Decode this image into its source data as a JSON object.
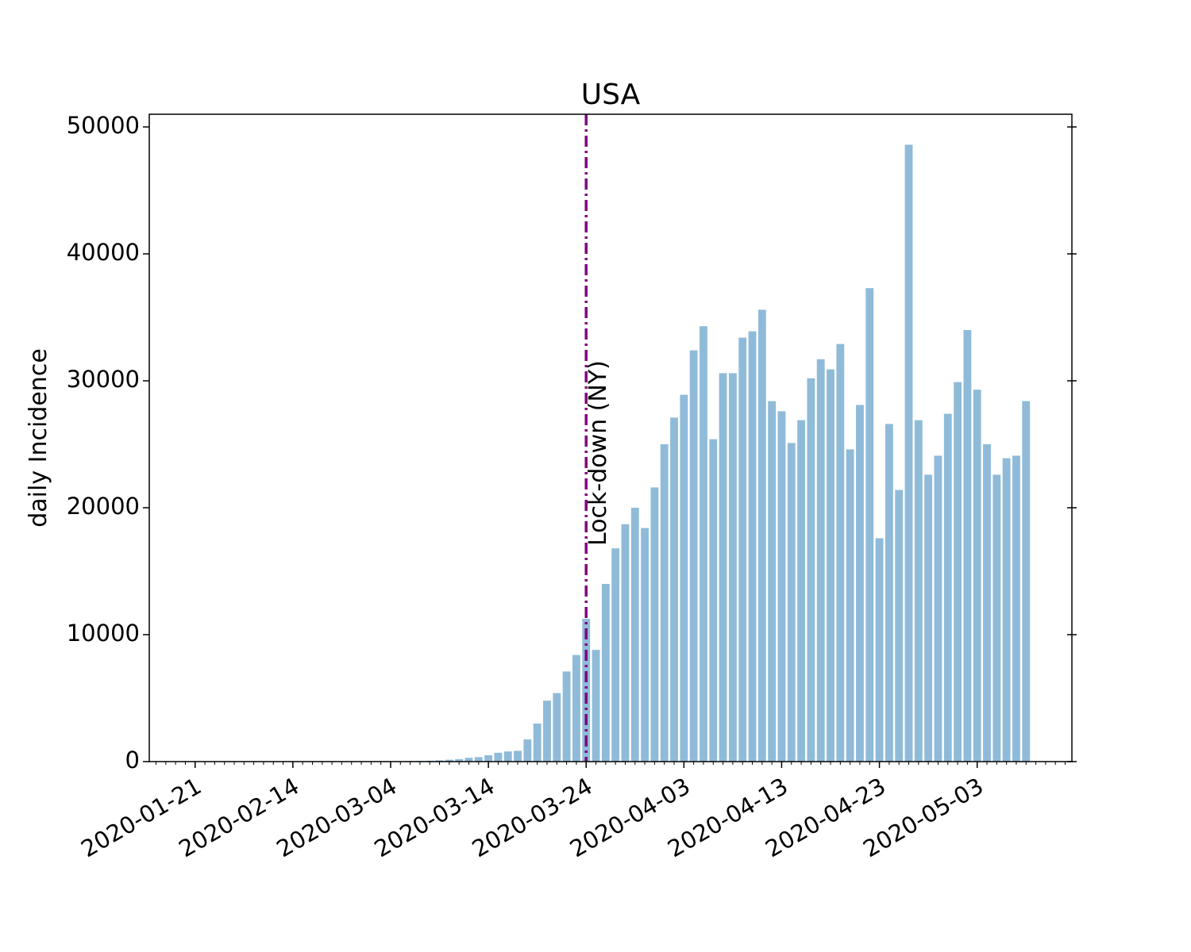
{
  "chart_data": {
    "type": "bar",
    "title": "USA",
    "y_label": "daily Incidence",
    "color": "#8fbbd9",
    "categories": [
      "2020-01-21",
      null,
      null,
      null,
      null,
      null,
      null,
      null,
      null,
      null,
      "2020-02-14",
      null,
      null,
      null,
      null,
      null,
      null,
      null,
      null,
      null,
      "2020-03-04",
      null,
      null,
      null,
      null,
      null,
      null,
      null,
      null,
      null,
      "2020-03-14",
      null,
      null,
      null,
      null,
      null,
      null,
      null,
      null,
      null,
      "2020-03-24",
      null,
      null,
      null,
      null,
      null,
      null,
      null,
      null,
      null,
      "2020-04-03",
      null,
      null,
      null,
      null,
      null,
      null,
      null,
      null,
      null,
      "2020-04-13",
      null,
      null,
      null,
      null,
      null,
      null,
      null,
      null,
      null,
      "2020-04-23",
      null,
      null,
      null,
      null,
      null,
      null,
      null,
      null,
      null,
      "2020-05-03",
      null,
      null,
      null,
      null,
      null
    ],
    "values": [
      1,
      0,
      1,
      0,
      1,
      0,
      0,
      1,
      0,
      1,
      1,
      0,
      1,
      2,
      3,
      5,
      8,
      10,
      15,
      20,
      25,
      30,
      40,
      50,
      70,
      100,
      150,
      200,
      300,
      350,
      500,
      700,
      800,
      850,
      1750,
      3000,
      4800,
      5400,
      7100,
      8400,
      11250,
      8800,
      14000,
      16800,
      18700,
      20000,
      18400,
      21600,
      25000,
      27100,
      28900,
      32400,
      34300,
      25400,
      30600,
      30600,
      33400,
      33900,
      35600,
      28400,
      27600,
      25100,
      26900,
      30200,
      31700,
      30900,
      32900,
      24600,
      28100,
      37300,
      17600,
      26600,
      21400,
      48600,
      26900,
      22600,
      24100,
      27400,
      29900,
      34000,
      29300,
      25000,
      22600,
      23900,
      24100,
      28400
    ],
    "xlim": [
      -4.69,
      89.69
    ],
    "xticks": [
      0,
      10,
      20,
      30,
      40,
      50,
      60,
      70,
      80
    ],
    "ylim": [
      0,
      51000
    ],
    "yticks": [
      0,
      10000,
      20000,
      30000,
      40000,
      50000
    ],
    "vline": {
      "x": 40,
      "label": "Lock-down (NY)",
      "color": "#800080"
    }
  }
}
